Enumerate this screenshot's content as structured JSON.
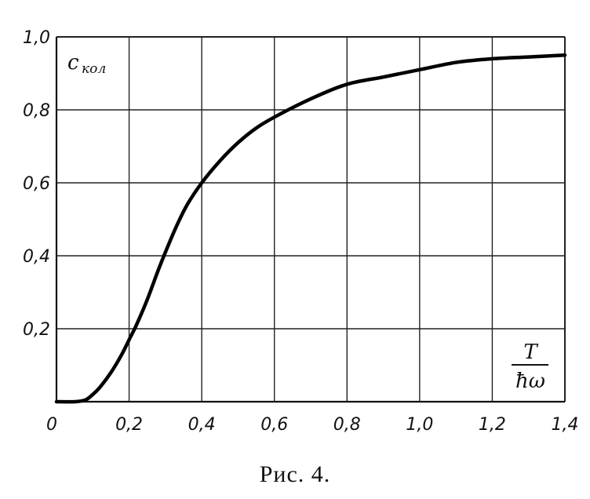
{
  "chart_data": {
    "type": "line",
    "ylabel": "c",
    "ylabel_sub": "кол",
    "xlabel_num": "T",
    "xlabel_den": "ħω",
    "xlim": [
      0,
      1.4
    ],
    "ylim": [
      0,
      1.0
    ],
    "x_ticks": [
      "0",
      "0,2",
      "0,4",
      "0,6",
      "0,8",
      "1,0",
      "1,2",
      "1,4"
    ],
    "y_ticks": [
      "0,2",
      "0,4",
      "0,6",
      "0,8",
      "1,0"
    ],
    "grid": true,
    "series": [
      {
        "x": [
          0,
          0.05,
          0.08,
          0.1,
          0.12,
          0.15,
          0.18,
          0.2,
          0.22,
          0.25,
          0.28,
          0.3,
          0.33,
          0.36,
          0.4,
          0.45,
          0.5,
          0.55,
          0.6,
          0.7,
          0.8,
          0.9,
          1.0,
          1.1,
          1.2,
          1.3,
          1.4
        ],
        "y": [
          0,
          0.0,
          0.005,
          0.02,
          0.04,
          0.08,
          0.13,
          0.17,
          0.21,
          0.28,
          0.36,
          0.41,
          0.48,
          0.54,
          0.6,
          0.66,
          0.71,
          0.75,
          0.78,
          0.83,
          0.87,
          0.89,
          0.91,
          0.93,
          0.94,
          0.945,
          0.95
        ]
      }
    ]
  },
  "caption": "Рис. 4."
}
